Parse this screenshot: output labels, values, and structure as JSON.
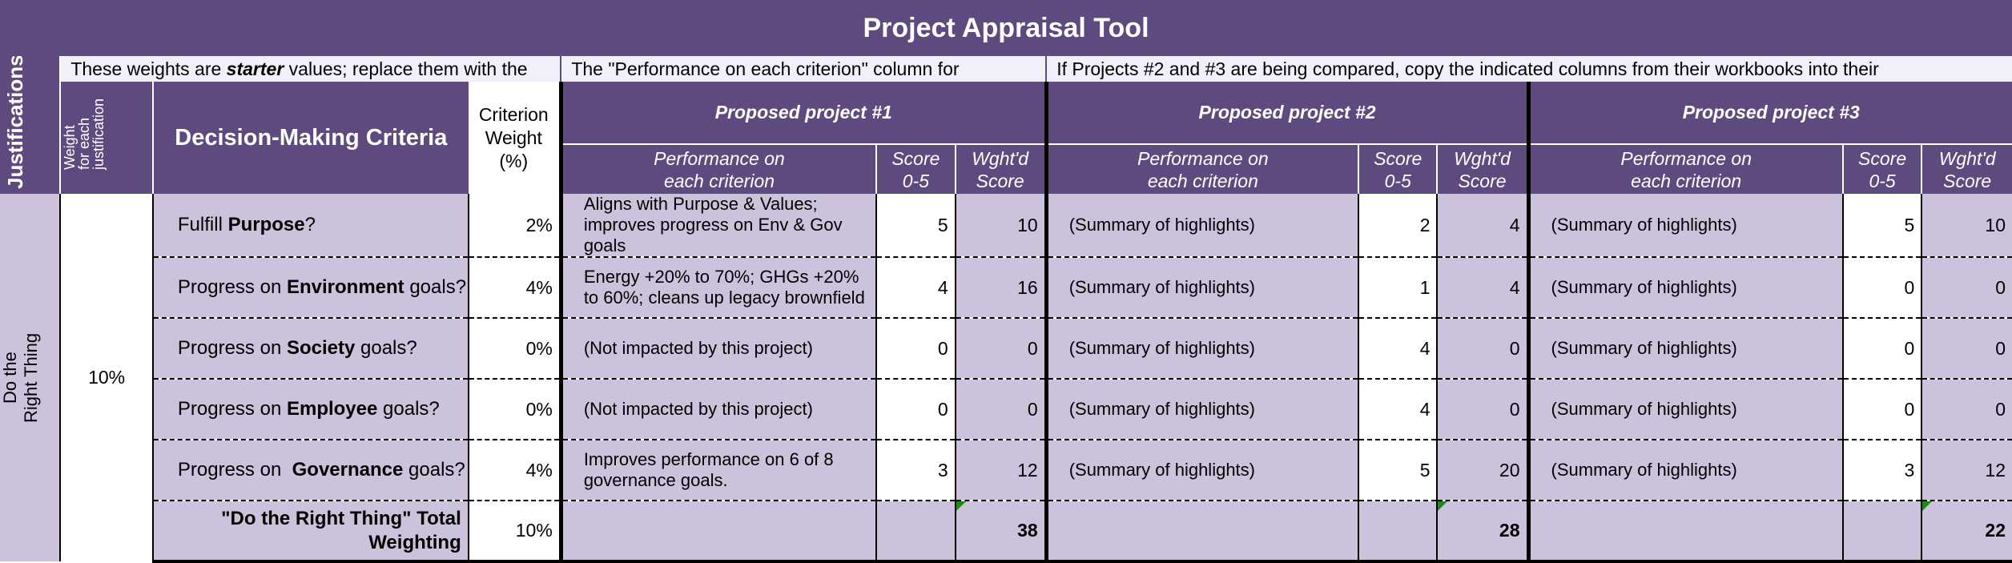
{
  "title": "Project Appraisal Tool",
  "notes": {
    "weights": "These weights are starter values; replace them with the",
    "weights_pre": "These weights are ",
    "weights_em": "starter",
    "weights_post": " values; replace them with the",
    "performance": "The \"Performance on each criterion\" column for",
    "compare": "If Projects #2 and #3 are being compared, copy the indicated columns from their workbooks into their"
  },
  "headers": {
    "justifications": "Justifications",
    "weight_each": "Weight for each justification",
    "criteria": "Decision-Making Criteria",
    "criterion_weight_1": "Criterion",
    "criterion_weight_2": "Weight",
    "criterion_weight_3": "(%)",
    "perf_1": "Performance on",
    "perf_2": "each criterion",
    "score_1": "Score",
    "score_2": "0-5",
    "wgt_1": "Wght'd",
    "wgt_2": "Score"
  },
  "projects": [
    "Proposed project #1",
    "Proposed project #2",
    "Proposed project #3"
  ],
  "justification": {
    "label_1": "Do the",
    "label_2": "Right Thing",
    "weight": "10%"
  },
  "rows": [
    {
      "pre": "Fulfill ",
      "bold": "Purpose",
      "post": "?",
      "weight": "2%",
      "p1": {
        "perf": "Aligns with Purpose & Values; improves progress on Env & Gov goals",
        "score": "5",
        "wgt": "10"
      },
      "p2": {
        "perf": "(Summary of highlights)",
        "score": "2",
        "wgt": "4"
      },
      "p3": {
        "perf": "(Summary of highlights)",
        "score": "5",
        "wgt": "10"
      }
    },
    {
      "pre": "Progress on ",
      "bold": "Environment",
      "post": " goals?",
      "weight": "4%",
      "p1": {
        "perf": "Energy +20% to 70%; GHGs +20% to 60%; cleans up legacy brownfield",
        "score": "4",
        "wgt": "16"
      },
      "p2": {
        "perf": "(Summary of highlights)",
        "score": "1",
        "wgt": "4"
      },
      "p3": {
        "perf": "(Summary of highlights)",
        "score": "0",
        "wgt": "0"
      }
    },
    {
      "pre": "Progress on ",
      "bold": "Society",
      "post": " goals?",
      "weight": "0%",
      "p1": {
        "perf": "(Not impacted by this project)",
        "score": "0",
        "wgt": "0"
      },
      "p2": {
        "perf": "(Summary of highlights)",
        "score": "4",
        "wgt": "0"
      },
      "p3": {
        "perf": "(Summary of highlights)",
        "score": "0",
        "wgt": "0"
      }
    },
    {
      "pre": "Progress on ",
      "bold": "Employee",
      "post": " goals?",
      "weight": "0%",
      "p1": {
        "perf": "(Not impacted by this project)",
        "score": "0",
        "wgt": "0"
      },
      "p2": {
        "perf": "(Summary of highlights)",
        "score": "4",
        "wgt": "0"
      },
      "p3": {
        "perf": "(Summary of highlights)",
        "score": "0",
        "wgt": "0"
      }
    },
    {
      "pre": "Progress on  ",
      "bold": "Governance",
      "post": " goals?",
      "weight": "4%",
      "p1": {
        "perf": "Improves performance on 6 of 8 governance goals.",
        "score": "3",
        "wgt": "12"
      },
      "p2": {
        "perf": "(Summary of highlights)",
        "score": "5",
        "wgt": "20"
      },
      "p3": {
        "perf": "(Summary of highlights)",
        "score": "3",
        "wgt": "12"
      }
    }
  ],
  "total": {
    "label_1": "\"Do the Right Thing\" Total",
    "label_2": "Weighting",
    "weight": "10%",
    "p1": "38",
    "p2": "28",
    "p3": "22"
  },
  "colors": {
    "header_purple": "#5e4a7e",
    "cell_lavender": "#ccc2dc",
    "note_bg": "#f1effa",
    "flag_green": "#1b8a1b"
  }
}
